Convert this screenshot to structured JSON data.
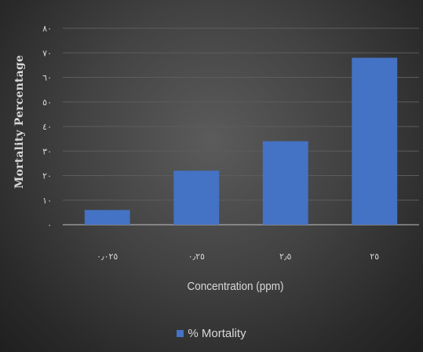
{
  "chart_data": {
    "type": "bar",
    "categories": [
      "٠٫٠٢٥",
      "٠٫٢٥",
      "٢٫٥",
      "٢٥"
    ],
    "values": [
      6,
      22,
      34,
      68
    ],
    "xlabel": "Concentration (ppm)",
    "ylabel": "Mortality Percentage",
    "ylim": [
      0,
      80
    ],
    "yticks": [
      0,
      10,
      20,
      30,
      40,
      50,
      60,
      70,
      80
    ],
    "ytick_labels": [
      "٠",
      "١٠",
      "٢٠",
      "٣٠",
      "٤٠",
      "٥٠",
      "٦٠",
      "٧٠",
      "٨٠"
    ],
    "grid": true,
    "legend_position": "bottom",
    "series": [
      {
        "name": "% Mortality",
        "values": [
          6,
          22,
          34,
          68
        ],
        "color": "#4472c4"
      }
    ]
  }
}
